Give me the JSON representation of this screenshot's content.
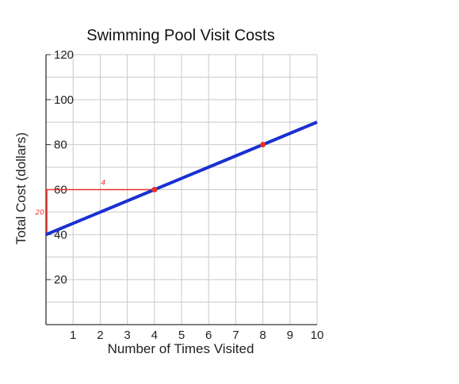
{
  "chart_data": {
    "type": "line",
    "title": "Swimming Pool Visit Costs",
    "xlabel": "Number of Times Visited",
    "ylabel": "Total Cost (dollars)",
    "xlim": [
      0,
      10
    ],
    "ylim": [
      0,
      120
    ],
    "x_ticks": [
      1,
      2,
      3,
      4,
      5,
      6,
      7,
      8,
      9,
      10
    ],
    "y_ticks": [
      20,
      40,
      60,
      80,
      100,
      120
    ],
    "grid": true,
    "series": [
      {
        "x": [
          0,
          10
        ],
        "y": [
          40,
          90
        ],
        "color": "#1a2fd1"
      }
    ],
    "points": [
      {
        "x": 4,
        "y": 60
      },
      {
        "x": 8,
        "y": 80
      }
    ],
    "annotations": {
      "run_label": "4",
      "rise_label": "20",
      "color": "#e8312a"
    }
  }
}
